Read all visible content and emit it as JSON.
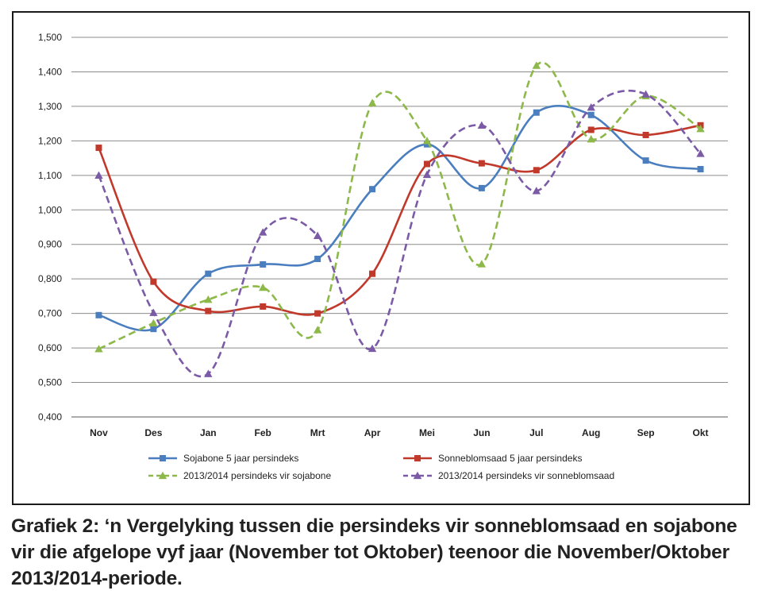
{
  "chart_data": {
    "type": "line",
    "categories": [
      "Nov",
      "Des",
      "Jan",
      "Feb",
      "Mrt",
      "Apr",
      "Mei",
      "Jun",
      "Jul",
      "Aug",
      "Sep",
      "Okt"
    ],
    "y_tick_labels": [
      "0,400",
      "0,500",
      "0,600",
      "0,700",
      "0,800",
      "0,900",
      "1,000",
      "1,100",
      "1,200",
      "1,300",
      "1,400",
      "1,500"
    ],
    "ylim": [
      0.4,
      1.5
    ],
    "grid": true,
    "legend_position": "bottom",
    "series": [
      {
        "name": "Sojabone 5 jaar persindeks",
        "color": "#4a7ebf",
        "dash": "solid",
        "marker": "square",
        "values": [
          0.695,
          0.655,
          0.815,
          0.842,
          0.858,
          1.06,
          1.19,
          1.063,
          1.282,
          1.275,
          1.143,
          1.118
        ]
      },
      {
        "name": "Sonneblomsaad 5 jaar persindeks",
        "color": "#c0392b",
        "dash": "solid",
        "marker": "square",
        "values": [
          1.18,
          0.792,
          0.707,
          0.72,
          0.7,
          0.815,
          1.133,
          1.135,
          1.115,
          1.232,
          1.217,
          1.245
        ]
      },
      {
        "name": "2013/2014 persindeks vir sojabone",
        "color": "#8db84a",
        "dash": "dashed",
        "marker": "triangle",
        "values": [
          0.597,
          0.672,
          0.74,
          0.775,
          0.652,
          1.31,
          1.2,
          0.843,
          1.418,
          1.205,
          1.33,
          1.235
        ]
      },
      {
        "name": "2013/2014 persindeks vir sonneblomsaad",
        "color": "#7b5aa6",
        "dash": "dashed",
        "marker": "triangle",
        "values": [
          1.1,
          0.702,
          0.525,
          0.935,
          0.925,
          0.598,
          1.102,
          1.245,
          1.055,
          1.297,
          1.335,
          1.163
        ]
      }
    ]
  },
  "caption": "Grafiek 2: ‘n Vergelyking tussen die persindeks vir sonneblomsaad en sojabone vir die afgelope vyf jaar (November tot Oktober) teenoor die November/Oktober 2013/2014-periode."
}
